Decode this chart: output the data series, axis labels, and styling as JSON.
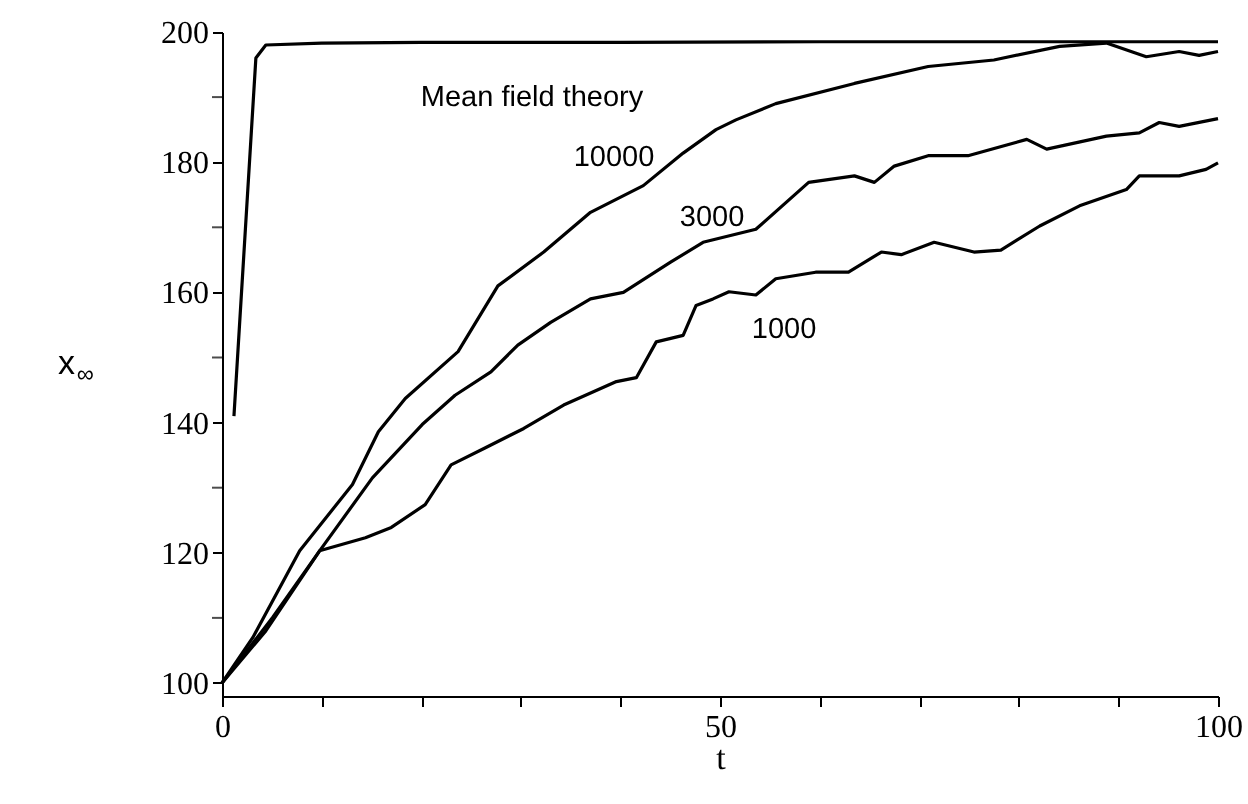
{
  "chart_data": {
    "type": "line",
    "xlabel": "t",
    "ylabel": "x$_{∞}$",
    "xlim": [
      0,
      100
    ],
    "ylim": [
      98,
      200
    ],
    "xticks": [
      0,
      {
        "value": 10,
        "label": null
      },
      {
        "value": 20,
        "label": null
      },
      {
        "value": 30,
        "label": null
      },
      {
        "value": 40,
        "label": null
      },
      50,
      {
        "value": 60,
        "label": null
      },
      {
        "value": 70,
        "label": null
      },
      {
        "value": 80,
        "label": null
      },
      {
        "value": 90,
        "label": null
      },
      100
    ],
    "yticks": [
      100,
      {
        "value": 110,
        "label": null
      },
      120,
      {
        "value": 130,
        "label": null
      },
      140,
      {
        "value": 150,
        "label": null
      },
      160,
      {
        "value": 170,
        "label": null
      },
      180,
      {
        "value": 190,
        "label": null
      },
      200
    ],
    "grid": false,
    "marker": "none",
    "line_style": "solid",
    "series": [
      {
        "name": "Mean field theory",
        "color": "#000000",
        "x": [
          1.2,
          3.4,
          4.4,
          10,
          20,
          40,
          60,
          80,
          100
        ],
        "values": [
          141,
          196,
          198,
          198.3,
          198.4,
          198.4,
          198.5,
          198.5,
          198.5
        ]
      },
      {
        "name": "10000",
        "color": "#000000",
        "x": [
          0,
          3.1,
          7.8,
          13.1,
          15.7,
          18.4,
          23.7,
          27.7,
          32.3,
          37,
          42.3,
          46.3,
          49.6,
          51.6,
          55.6,
          63.5,
          70.9,
          77.5,
          84.1,
          88.8,
          92.8,
          96.1,
          98.1,
          100
        ],
        "values": [
          100,
          107,
          120.3,
          130.5,
          138.6,
          143.7,
          150.9,
          161,
          166.2,
          172.3,
          176.4,
          181.4,
          185,
          186.5,
          189,
          192.1,
          194.7,
          195.7,
          197.8,
          198.3,
          196.2,
          197,
          196.4,
          197
        ]
      },
      {
        "name": "3000",
        "color": "#000000",
        "x": [
          0,
          5.1,
          9.8,
          15.1,
          20.1,
          23.4,
          27,
          29.7,
          33,
          37,
          40.3,
          45,
          48.3,
          53.6,
          58.9,
          63.5,
          65.5,
          67.5,
          70.9,
          74.9,
          80.8,
          82.8,
          88.8,
          92.1,
          94.1,
          96.1,
          100
        ],
        "values": [
          100,
          110.1,
          120.3,
          131.5,
          139.7,
          144.2,
          147.8,
          151.9,
          155.4,
          159,
          160,
          164.6,
          167.7,
          169.7,
          176.9,
          177.9,
          176.9,
          179.4,
          181,
          181,
          183.5,
          182,
          184,
          184.5,
          186.1,
          185.5,
          186.7
        ]
      },
      {
        "name": "1000",
        "color": "#000000",
        "x": [
          0,
          4.4,
          9.8,
          14.4,
          17,
          20.4,
          23,
          26.4,
          30.3,
          34.3,
          39.6,
          41.6,
          43.6,
          46.3,
          47.6,
          49.3,
          50.9,
          53.6,
          55.6,
          59.6,
          62.9,
          66.2,
          68.2,
          71.5,
          75.5,
          78.2,
          82.1,
          86.1,
          90.8,
          92.1,
          96.1,
          98.8,
          100
        ],
        "values": [
          100,
          108,
          120.3,
          122.3,
          123.9,
          127.4,
          133.5,
          136.1,
          139.1,
          142.7,
          146.3,
          146.9,
          152.4,
          153.4,
          158,
          159,
          160.1,
          159.6,
          162.1,
          163.1,
          163.1,
          166.2,
          165.8,
          167.7,
          166.2,
          166.5,
          170.2,
          173.3,
          175.8,
          177.9,
          177.9,
          178.9,
          179.9
        ]
      }
    ]
  }
}
